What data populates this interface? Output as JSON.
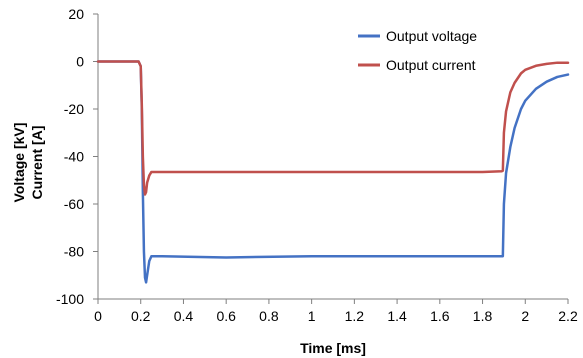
{
  "chart_data": {
    "type": "line",
    "title": "",
    "xlabel": "Time [ms]",
    "ylabel_lines": [
      "Voltage [kV]",
      "Current [A]"
    ],
    "xlim": [
      0,
      2.2
    ],
    "ylim": [
      -100,
      20
    ],
    "xticks": [
      0,
      0.2,
      0.4,
      0.6,
      0.8,
      1,
      1.2,
      1.4,
      1.6,
      1.8,
      2,
      2.2
    ],
    "xtick_labels": [
      "0",
      "0.2",
      "0.4",
      "0.6",
      "0.8",
      "1",
      "1.2",
      "1.4",
      "1.6",
      "1.8",
      "2",
      "2.2"
    ],
    "yticks": [
      20,
      0,
      -20,
      -40,
      -60,
      -80,
      -100
    ],
    "ytick_labels": [
      "20",
      "0",
      "-20",
      "-40",
      "-60",
      "-80",
      "-100"
    ],
    "grid": false,
    "legend_position": "top-right",
    "series": [
      {
        "name": "Output voltage",
        "color": "#4472c4",
        "x": [
          0,
          0.19,
          0.2,
          0.205,
          0.21,
          0.215,
          0.22,
          0.225,
          0.23,
          0.24,
          0.25,
          0.3,
          0.6,
          1.0,
          1.4,
          1.8,
          1.89,
          1.895,
          1.9,
          1.91,
          1.93,
          1.95,
          1.98,
          2.0,
          2.05,
          2.1,
          2.15,
          2.2
        ],
        "y": [
          0,
          0,
          -2,
          -20,
          -55,
          -80,
          -91,
          -93,
          -90,
          -84,
          -82,
          -82,
          -82.5,
          -82,
          -82,
          -82,
          -82,
          -82,
          -60,
          -47,
          -36,
          -28,
          -20,
          -16.5,
          -11.5,
          -8.5,
          -6.5,
          -5.5
        ]
      },
      {
        "name": "Output current",
        "color": "#c0504d",
        "x": [
          0,
          0.19,
          0.2,
          0.205,
          0.21,
          0.215,
          0.22,
          0.225,
          0.23,
          0.24,
          0.25,
          0.3,
          0.6,
          1.0,
          1.4,
          1.8,
          1.89,
          1.895,
          1.9,
          1.91,
          1.93,
          1.95,
          1.98,
          2.0,
          2.05,
          2.1,
          2.15,
          2.2
        ],
        "y": [
          0,
          0,
          -2,
          -18,
          -40,
          -52,
          -56,
          -55,
          -51,
          -48,
          -46.5,
          -46.5,
          -46.5,
          -46.5,
          -46.5,
          -46.5,
          -46.2,
          -46,
          -30,
          -21,
          -13,
          -9,
          -5,
          -3.5,
          -1.8,
          -1,
          -0.5,
          -0.5
        ]
      }
    ]
  }
}
